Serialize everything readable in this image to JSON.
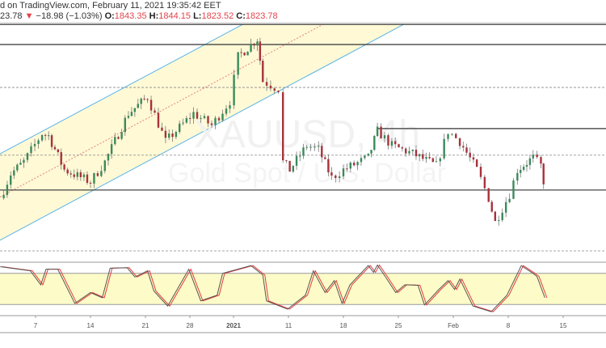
{
  "header": {
    "published": "d on TradingView.com, February 11, 2021 19:35:42 EET",
    "last": "23.78",
    "change_icon": "triangle-down-icon",
    "change_arrow": "▼",
    "change": "−18.98 (−1.03%)",
    "o_label": "O:",
    "o": "1843.35",
    "h_label": "H:",
    "h": "1844.15",
    "l_label": "L:",
    "l": "1823.52",
    "c_label": "C:",
    "c": "1823.78"
  },
  "watermark": {
    "symbol": "XAUUSD, 4h",
    "name": "Gold Spot / U.S. Dollar"
  },
  "colors": {
    "up": "#3a8a5a",
    "down": "#a8323a",
    "wick": "#777777",
    "channel_line": "#5ab4e8",
    "channel_fill": "#fff9d6",
    "midline": "#e88080",
    "stoch_k": "#555555",
    "stoch_d": "#e83a3a",
    "stoch_band": "#fdfbc8"
  },
  "chart_data": [
    {
      "type": "candlestick",
      "title": "",
      "ylim": [
        1763,
        1970
      ],
      "x_ticks": [
        {
          "label": "7",
          "date": "2020-12-07"
        },
        {
          "label": "14",
          "date": "2020-12-14"
        },
        {
          "label": "21",
          "date": "2020-12-21"
        },
        {
          "label": "28",
          "date": "2020-12-28"
        },
        {
          "label": "2021",
          "date": "2021-01-01"
        },
        {
          "label": "11",
          "date": "2021-01-11"
        },
        {
          "label": "18",
          "date": "2021-01-18"
        },
        {
          "label": "25",
          "date": "2021-01-25"
        },
        {
          "label": "Feb",
          "date": "2021-02-01"
        },
        {
          "label": "8",
          "date": "2021-02-08"
        },
        {
          "label": "15",
          "date": "2021-02-15"
        }
      ],
      "close_path": [
        [
          "2020-12-02 12:00",
          1811.2
        ],
        [
          "2020-12-03 20:00",
          1833.4
        ],
        [
          "2020-12-05 12:00",
          1844.4
        ],
        [
          "2020-12-07 20:00",
          1870.3
        ],
        [
          "2020-12-08 16:00",
          1868.1
        ],
        [
          "2020-12-10 16:00",
          1837.1
        ],
        [
          "2020-12-14 00:00",
          1826.0
        ],
        [
          "2020-12-15 20:00",
          1844.4
        ],
        [
          "2020-12-18 20:00",
          1888.7
        ],
        [
          "2020-12-21 08:00",
          1903.4
        ],
        [
          "2020-12-24 04:00",
          1862.9
        ],
        [
          "2020-12-28 08:00",
          1888.7
        ],
        [
          "2020-12-30 00:00",
          1877.7
        ],
        [
          "2020-12-31 16:00",
          1899.8
        ],
        [
          "2021-01-01 20:00",
          1940.4
        ],
        [
          "2021-01-05 08:00",
          1956.6
        ],
        [
          "2021-01-06 08:00",
          1918.2
        ],
        [
          "2021-01-09 04:00",
          1910.9
        ],
        [
          "2021-01-10 00:00",
          1844.4
        ],
        [
          "2021-01-11 04:00",
          1837.1
        ],
        [
          "2021-01-13 08:00",
          1859.2
        ],
        [
          "2021-01-14 20:00",
          1855.5
        ],
        [
          "2021-01-16 12:00",
          1829.7
        ],
        [
          "2021-01-18 00:00",
          1837.1
        ],
        [
          "2021-01-21 04:00",
          1848.1
        ],
        [
          "2021-01-22 08:00",
          1872.5
        ],
        [
          "2021-01-24 04:00",
          1859.2
        ],
        [
          "2021-01-26 20:00",
          1851.8
        ],
        [
          "2021-01-29 20:00",
          1840.8
        ],
        [
          "2021-01-31 08:00",
          1872.5
        ],
        [
          "2021-02-01 20:00",
          1862.9
        ],
        [
          "2021-02-04 00:00",
          1837.1
        ],
        [
          "2021-02-05 12:00",
          1811.2
        ],
        [
          "2021-02-06 08:00",
          1789.1
        ],
        [
          "2021-02-08 04:00",
          1814.9
        ],
        [
          "2021-02-09 04:00",
          1837.1
        ],
        [
          "2021-02-11 04:00",
          1848.1
        ],
        [
          "2021-02-12 04:00",
          1840.8
        ],
        [
          "2021-02-12 12:00",
          1823.78
        ]
      ],
      "horizontal_levels": [
        {
          "price": 1969.9,
          "style": "solid"
        },
        {
          "price": 1951.5,
          "style": "solid"
        },
        {
          "price": 1912.3,
          "style": "dashed"
        },
        {
          "price": 1874.7,
          "style": "solid",
          "from": "2021-01-22 08:00"
        },
        {
          "price": 1850.4,
          "style": "dashed"
        },
        {
          "price": 1818.6,
          "style": "solid"
        },
        {
          "price": 1763.0,
          "style": "dashed"
        }
      ],
      "channel": {
        "upper": [
          [
            "2020-12-02 12:00",
            1851.8
          ],
          [
            "2021-01-02 16:00",
            1969.9
          ]
        ],
        "lower": [
          [
            "2020-12-02 12:00",
            1772.9
          ],
          [
            "2021-01-25 16:00",
            1969.9
          ]
        ]
      }
    },
    {
      "type": "line",
      "title": "",
      "ylim": [
        0,
        100
      ],
      "bands": [
        20,
        80
      ],
      "k_path": [
        [
          "2020-12-02 12:00",
          93
        ],
        [
          "2020-12-06 08:00",
          85
        ],
        [
          "2020-12-07 16:00",
          58
        ],
        [
          "2020-12-08 08:00",
          88
        ],
        [
          "2020-12-09 20:00",
          88
        ],
        [
          "2020-12-12 00:00",
          22
        ],
        [
          "2020-12-14 00:00",
          43
        ],
        [
          "2020-12-15 12:00",
          33
        ],
        [
          "2020-12-16 12:00",
          90
        ],
        [
          "2020-12-18 16:00",
          91
        ],
        [
          "2020-12-19 16:00",
          73
        ],
        [
          "2020-12-21 08:00",
          85
        ],
        [
          "2020-12-22 08:00",
          46
        ],
        [
          "2020-12-24 12:00",
          17
        ],
        [
          "2020-12-27 20:00",
          88
        ],
        [
          "2020-12-29 00:00",
          27
        ],
        [
          "2020-12-30 12:00",
          38
        ],
        [
          "2020-12-31 00:00",
          80
        ],
        [
          "2021-01-04 04:00",
          95
        ],
        [
          "2021-01-06 08:00",
          77
        ],
        [
          "2021-01-07 00:00",
          27
        ],
        [
          "2021-01-10 20:00",
          11
        ],
        [
          "2021-01-13 04:00",
          38
        ],
        [
          "2021-01-14 04:00",
          85
        ],
        [
          "2021-01-15 16:00",
          43
        ],
        [
          "2021-01-16 20:00",
          66
        ],
        [
          "2021-01-17 20:00",
          22
        ],
        [
          "2021-01-18 20:00",
          58
        ],
        [
          "2021-01-21 04:00",
          95
        ],
        [
          "2021-01-21 20:00",
          82
        ],
        [
          "2021-01-22 08:00",
          96
        ],
        [
          "2021-01-23 08:00",
          74
        ],
        [
          "2021-01-24 16:00",
          43
        ],
        [
          "2021-01-25 20:00",
          58
        ],
        [
          "2021-01-27 12:00",
          57
        ],
        [
          "2021-01-28 08:00",
          19
        ],
        [
          "2021-01-30 04:00",
          49
        ],
        [
          "2021-01-31 08:00",
          66
        ],
        [
          "2021-02-01 04:00",
          49
        ],
        [
          "2021-02-01 20:00",
          69
        ],
        [
          "2021-02-03 12:00",
          17
        ],
        [
          "2021-02-05 20:00",
          6
        ],
        [
          "2021-02-07 20:00",
          38
        ],
        [
          "2021-02-09 16:00",
          95
        ],
        [
          "2021-02-11 04:00",
          80
        ],
        [
          "2021-02-11 16:00",
          74
        ],
        [
          "2021-02-12 16:00",
          33
        ]
      ]
    }
  ]
}
